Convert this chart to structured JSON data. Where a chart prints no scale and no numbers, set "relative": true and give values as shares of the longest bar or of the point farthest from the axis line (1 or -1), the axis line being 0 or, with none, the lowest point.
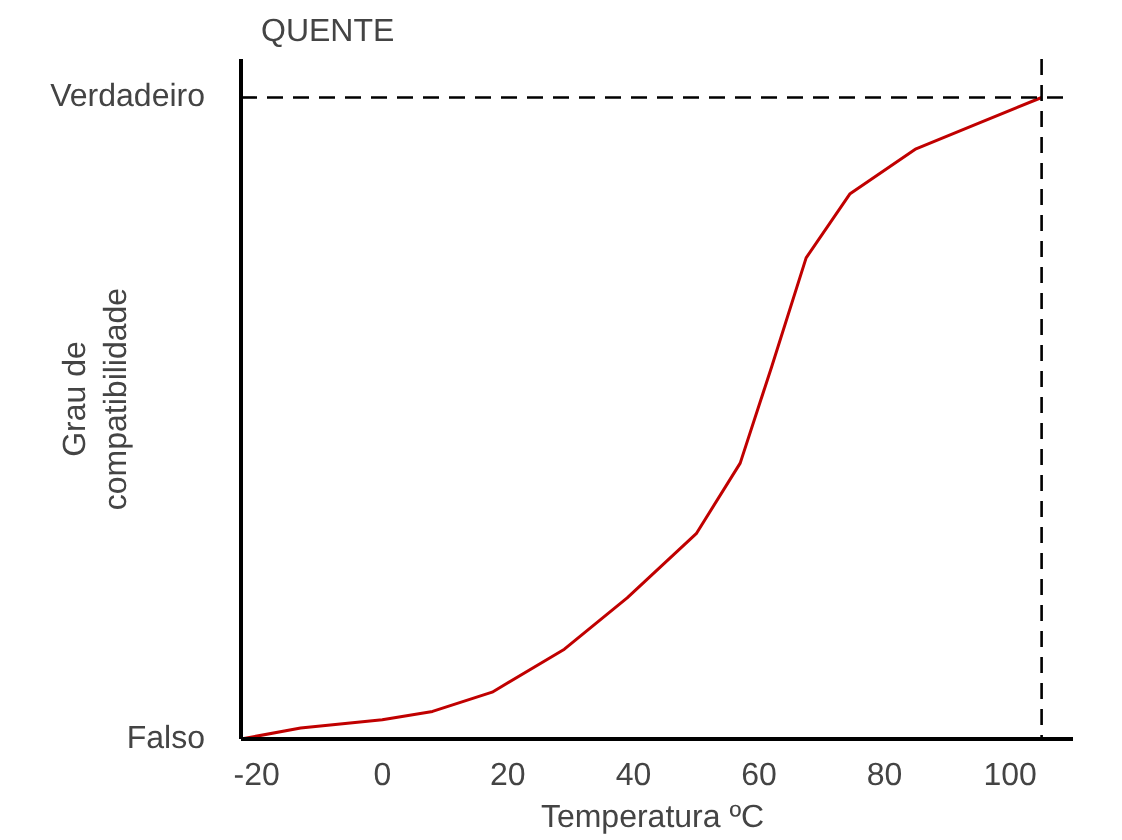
{
  "chart_data": {
    "type": "line",
    "title": "QUENTE",
    "xlabel": "Temperatura  ºC",
    "ylabel": "Grau de\ncompatibilidade",
    "x": [
      -22.5,
      -13,
      0,
      8,
      17.5,
      29,
      39,
      50,
      57,
      62,
      67.5,
      74.5,
      85,
      95,
      105
    ],
    "series": [
      {
        "color": "#c00000",
        "values": [
          0,
          0.017,
          0.03,
          0.043,
          0.073,
          0.14,
          0.22,
          0.32,
          0.43,
          0.58,
          0.75,
          0.85,
          0.92,
          0.96,
          1.0
        ]
      }
    ],
    "xlim": [
      -22.5,
      110
    ],
    "relative": true,
    "xticks": [
      -20,
      0,
      20,
      40,
      60,
      80,
      100
    ],
    "annotations": [
      "Falso",
      "Verdadeiro"
    ],
    "ref_lines": [
      {
        "axis": "y",
        "value": 1,
        "line_style": "dashed",
        "color": "#000000"
      },
      {
        "axis": "x",
        "value": 105,
        "line_style": "dashed",
        "color": "#000000"
      }
    ],
    "grid": false,
    "marker": "none",
    "line_style": "solid"
  }
}
